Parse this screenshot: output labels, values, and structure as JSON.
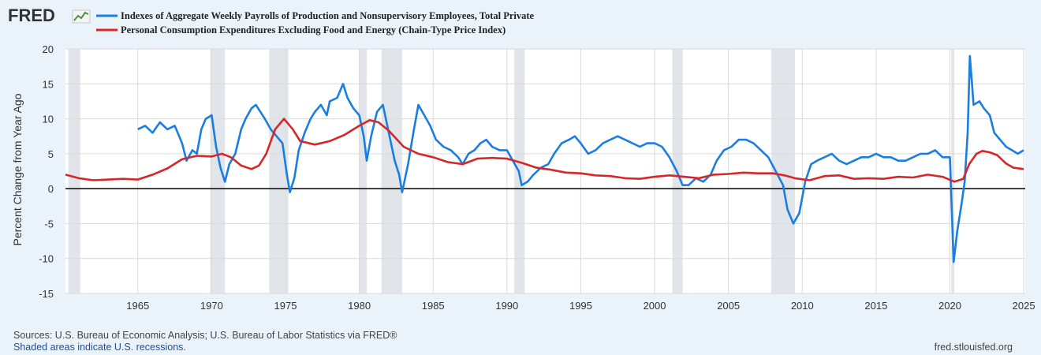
{
  "header": {
    "logo_text": "FRED"
  },
  "colors": {
    "background": "#eaf2fa",
    "plot_bg": "#ffffff",
    "grid": "#dadada",
    "recession": "#e1e5ea",
    "zero_line": "#000000"
  },
  "chart_data": {
    "type": "line",
    "title": "",
    "xlabel": "",
    "ylabel": "Percent Change from Year Ago",
    "xlim": [
      1960.1,
      2025.1
    ],
    "ylim": [
      -15,
      20
    ],
    "x_ticks": [
      "1965",
      "1970",
      "1975",
      "1980",
      "1985",
      "1990",
      "1995",
      "2000",
      "2005",
      "2010",
      "2015",
      "2020",
      "2025"
    ],
    "y_ticks": [
      "20",
      "15",
      "10",
      "5",
      "0",
      "-5",
      "-10",
      "-15"
    ],
    "grid": true,
    "zero_line": 0,
    "recessions": [
      [
        1960.3,
        1961.1
      ],
      [
        1969.9,
        1970.9
      ],
      [
        1973.9,
        1975.2
      ],
      [
        1980.0,
        1980.5
      ],
      [
        1981.5,
        1982.9
      ],
      [
        1990.5,
        1991.2
      ],
      [
        2001.2,
        2001.9
      ],
      [
        2007.9,
        2009.5
      ],
      [
        2020.1,
        2020.3
      ]
    ],
    "series": [
      {
        "name": "Indexes of Aggregate Weekly Payrolls of Production and Nonsupervisory Employees, Total Private",
        "color": "#1a7ee0",
        "points": [
          [
            1965.0,
            8.5
          ],
          [
            1965.5,
            9.0
          ],
          [
            1966.0,
            8.0
          ],
          [
            1966.5,
            9.5
          ],
          [
            1967.0,
            8.5
          ],
          [
            1967.5,
            9.0
          ],
          [
            1968.0,
            6.5
          ],
          [
            1968.3,
            4.0
          ],
          [
            1968.7,
            5.5
          ],
          [
            1969.0,
            5.0
          ],
          [
            1969.3,
            8.5
          ],
          [
            1969.6,
            10.0
          ],
          [
            1970.0,
            10.5
          ],
          [
            1970.3,
            6.0
          ],
          [
            1970.6,
            3.0
          ],
          [
            1970.9,
            1.0
          ],
          [
            1971.2,
            3.5
          ],
          [
            1971.6,
            5.0
          ],
          [
            1972.0,
            8.5
          ],
          [
            1972.3,
            10.0
          ],
          [
            1972.7,
            11.5
          ],
          [
            1973.0,
            12.0
          ],
          [
            1973.3,
            11.0
          ],
          [
            1973.6,
            10.0
          ],
          [
            1974.0,
            8.5
          ],
          [
            1974.4,
            7.5
          ],
          [
            1974.8,
            6.5
          ],
          [
            1975.1,
            2.0
          ],
          [
            1975.3,
            -0.5
          ],
          [
            1975.6,
            1.5
          ],
          [
            1975.9,
            5.5
          ],
          [
            1976.3,
            8.0
          ],
          [
            1976.7,
            10.0
          ],
          [
            1977.0,
            11.0
          ],
          [
            1977.4,
            12.0
          ],
          [
            1977.8,
            10.5
          ],
          [
            1978.0,
            12.5
          ],
          [
            1978.5,
            13.0
          ],
          [
            1978.9,
            15.0
          ],
          [
            1979.2,
            13.0
          ],
          [
            1979.6,
            11.5
          ],
          [
            1980.0,
            10.5
          ],
          [
            1980.3,
            7.5
          ],
          [
            1980.5,
            4.0
          ],
          [
            1980.8,
            7.5
          ],
          [
            1981.2,
            11.0
          ],
          [
            1981.6,
            12.0
          ],
          [
            1982.0,
            8.0
          ],
          [
            1982.4,
            4.0
          ],
          [
            1982.7,
            2.0
          ],
          [
            1982.9,
            -0.5
          ],
          [
            1983.3,
            3.5
          ],
          [
            1983.7,
            8.5
          ],
          [
            1984.0,
            12.0
          ],
          [
            1984.4,
            10.5
          ],
          [
            1984.8,
            9.0
          ],
          [
            1985.2,
            7.0
          ],
          [
            1985.7,
            6.0
          ],
          [
            1986.2,
            5.5
          ],
          [
            1986.7,
            4.5
          ],
          [
            1987.0,
            3.5
          ],
          [
            1987.4,
            5.0
          ],
          [
            1987.8,
            5.5
          ],
          [
            1988.2,
            6.5
          ],
          [
            1988.6,
            7.0
          ],
          [
            1989.0,
            6.0
          ],
          [
            1989.5,
            5.5
          ],
          [
            1990.0,
            5.5
          ],
          [
            1990.4,
            4.0
          ],
          [
            1990.8,
            2.5
          ],
          [
            1991.0,
            0.5
          ],
          [
            1991.4,
            1.0
          ],
          [
            1991.8,
            2.0
          ],
          [
            1992.3,
            3.0
          ],
          [
            1992.8,
            3.5
          ],
          [
            1993.2,
            5.0
          ],
          [
            1993.7,
            6.5
          ],
          [
            1994.2,
            7.0
          ],
          [
            1994.6,
            7.5
          ],
          [
            1995.0,
            6.5
          ],
          [
            1995.5,
            5.0
          ],
          [
            1996.0,
            5.5
          ],
          [
            1996.5,
            6.5
          ],
          [
            1997.0,
            7.0
          ],
          [
            1997.5,
            7.5
          ],
          [
            1998.0,
            7.0
          ],
          [
            1998.5,
            6.5
          ],
          [
            1999.0,
            6.0
          ],
          [
            1999.5,
            6.5
          ],
          [
            2000.0,
            6.5
          ],
          [
            2000.5,
            6.0
          ],
          [
            2001.0,
            4.5
          ],
          [
            2001.5,
            2.5
          ],
          [
            2001.9,
            0.5
          ],
          [
            2002.3,
            0.5
          ],
          [
            2002.8,
            1.5
          ],
          [
            2003.3,
            1.0
          ],
          [
            2003.8,
            2.0
          ],
          [
            2004.2,
            4.0
          ],
          [
            2004.7,
            5.5
          ],
          [
            2005.2,
            6.0
          ],
          [
            2005.7,
            7.0
          ],
          [
            2006.2,
            7.0
          ],
          [
            2006.7,
            6.5
          ],
          [
            2007.2,
            5.5
          ],
          [
            2007.7,
            4.5
          ],
          [
            2008.2,
            2.5
          ],
          [
            2008.7,
            0.5
          ],
          [
            2009.0,
            -3.0
          ],
          [
            2009.4,
            -5.0
          ],
          [
            2009.8,
            -3.5
          ],
          [
            2010.2,
            1.0
          ],
          [
            2010.6,
            3.5
          ],
          [
            2011.0,
            4.0
          ],
          [
            2011.5,
            4.5
          ],
          [
            2012.0,
            5.0
          ],
          [
            2012.5,
            4.0
          ],
          [
            2013.0,
            3.5
          ],
          [
            2013.5,
            4.0
          ],
          [
            2014.0,
            4.5
          ],
          [
            2014.5,
            4.5
          ],
          [
            2015.0,
            5.0
          ],
          [
            2015.5,
            4.5
          ],
          [
            2016.0,
            4.5
          ],
          [
            2016.5,
            4.0
          ],
          [
            2017.0,
            4.0
          ],
          [
            2017.5,
            4.5
          ],
          [
            2018.0,
            5.0
          ],
          [
            2018.5,
            5.0
          ],
          [
            2019.0,
            5.5
          ],
          [
            2019.5,
            4.5
          ],
          [
            2020.0,
            4.5
          ],
          [
            2020.25,
            -10.5
          ],
          [
            2020.5,
            -6.0
          ],
          [
            2020.8,
            -2.0
          ],
          [
            2021.0,
            1.0
          ],
          [
            2021.2,
            8.0
          ],
          [
            2021.35,
            19.0
          ],
          [
            2021.6,
            12.0
          ],
          [
            2022.0,
            12.5
          ],
          [
            2022.3,
            11.5
          ],
          [
            2022.7,
            10.5
          ],
          [
            2023.0,
            8.0
          ],
          [
            2023.4,
            7.0
          ],
          [
            2023.8,
            6.0
          ],
          [
            2024.2,
            5.5
          ],
          [
            2024.6,
            5.0
          ],
          [
            2025.0,
            5.5
          ]
        ]
      },
      {
        "name": "Personal Consumption Expenditures Excluding Food and Energy (Chain-Type Price Index)",
        "color": "#d62728",
        "points": [
          [
            1960.1,
            2.0
          ],
          [
            1961.0,
            1.5
          ],
          [
            1962.0,
            1.2
          ],
          [
            1963.0,
            1.3
          ],
          [
            1964.0,
            1.4
          ],
          [
            1965.0,
            1.3
          ],
          [
            1966.0,
            2.0
          ],
          [
            1967.0,
            2.9
          ],
          [
            1968.0,
            4.2
          ],
          [
            1969.0,
            4.7
          ],
          [
            1970.0,
            4.6
          ],
          [
            1970.7,
            5.0
          ],
          [
            1971.3,
            4.5
          ],
          [
            1972.0,
            3.3
          ],
          [
            1972.7,
            2.8
          ],
          [
            1973.2,
            3.3
          ],
          [
            1973.7,
            5.0
          ],
          [
            1974.3,
            8.5
          ],
          [
            1974.9,
            10.0
          ],
          [
            1975.5,
            8.5
          ],
          [
            1976.0,
            6.8
          ],
          [
            1977.0,
            6.3
          ],
          [
            1978.0,
            6.8
          ],
          [
            1979.0,
            7.7
          ],
          [
            1980.0,
            9.0
          ],
          [
            1980.7,
            9.8
          ],
          [
            1981.3,
            9.5
          ],
          [
            1982.0,
            8.3
          ],
          [
            1983.0,
            6.0
          ],
          [
            1984.0,
            5.0
          ],
          [
            1985.0,
            4.5
          ],
          [
            1986.0,
            3.8
          ],
          [
            1987.0,
            3.5
          ],
          [
            1988.0,
            4.3
          ],
          [
            1989.0,
            4.4
          ],
          [
            1990.0,
            4.3
          ],
          [
            1991.0,
            3.7
          ],
          [
            1992.0,
            3.0
          ],
          [
            1993.0,
            2.7
          ],
          [
            1994.0,
            2.3
          ],
          [
            1995.0,
            2.2
          ],
          [
            1996.0,
            1.9
          ],
          [
            1997.0,
            1.8
          ],
          [
            1998.0,
            1.5
          ],
          [
            1999.0,
            1.4
          ],
          [
            2000.0,
            1.7
          ],
          [
            2001.0,
            1.9
          ],
          [
            2002.0,
            1.7
          ],
          [
            2003.0,
            1.5
          ],
          [
            2004.0,
            2.0
          ],
          [
            2005.0,
            2.1
          ],
          [
            2006.0,
            2.3
          ],
          [
            2007.0,
            2.2
          ],
          [
            2008.0,
            2.2
          ],
          [
            2008.8,
            1.9
          ],
          [
            2009.5,
            1.5
          ],
          [
            2010.5,
            1.2
          ],
          [
            2011.5,
            1.8
          ],
          [
            2012.5,
            1.9
          ],
          [
            2013.5,
            1.4
          ],
          [
            2014.5,
            1.5
          ],
          [
            2015.5,
            1.4
          ],
          [
            2016.5,
            1.7
          ],
          [
            2017.5,
            1.6
          ],
          [
            2018.5,
            2.0
          ],
          [
            2019.5,
            1.7
          ],
          [
            2020.3,
            1.0
          ],
          [
            2020.9,
            1.4
          ],
          [
            2021.3,
            3.5
          ],
          [
            2021.8,
            5.0
          ],
          [
            2022.2,
            5.4
          ],
          [
            2022.7,
            5.2
          ],
          [
            2023.2,
            4.8
          ],
          [
            2023.8,
            3.6
          ],
          [
            2024.3,
            3.0
          ],
          [
            2025.0,
            2.8
          ]
        ]
      }
    ]
  },
  "footer": {
    "sources": "Sources: U.S. Bureau of Economic Analysis; U.S. Bureau of Labor Statistics via FRED®",
    "shaded_note": "Shaded areas indicate U.S. recessions.",
    "site": "fred.stlouisfed.org"
  }
}
